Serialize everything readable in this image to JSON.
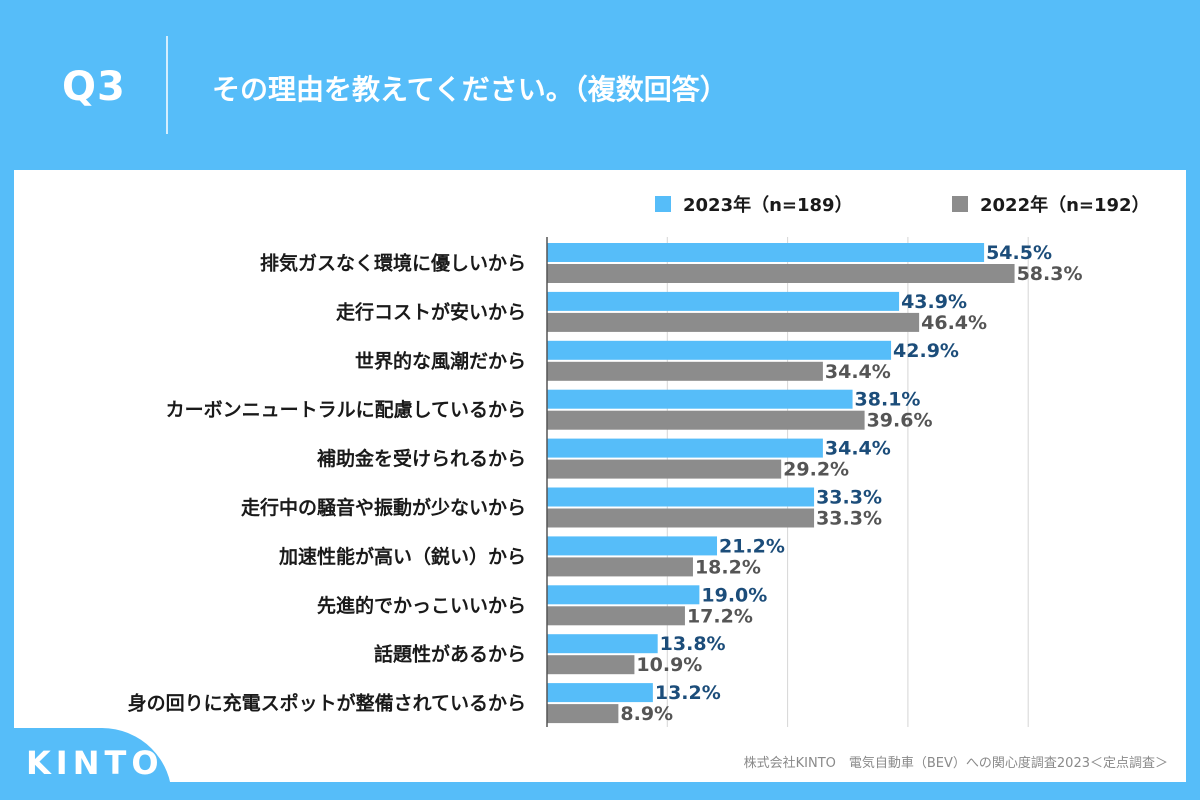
{
  "header": {
    "q_label": "Q3",
    "question": "その理由を教えてください。（複数回答）"
  },
  "legend": {
    "series_2023": "2023年（n=189）",
    "series_2022": "2022年（n=192）"
  },
  "colors": {
    "background": "#56bdf9",
    "series_2023": "#56bdf9",
    "series_2022": "#8c8c8c",
    "label_2023": "#1c4d7a",
    "label_2022": "#555555"
  },
  "footer": {
    "source": "株式会社KINTO　電気自動車（BEV）への関心度調査2023＜定点調査＞",
    "logo": "KINTO"
  },
  "chart_data": {
    "type": "bar",
    "orientation": "horizontal",
    "title": "その理由を教えてください。（複数回答）",
    "xlabel": "",
    "ylabel": "",
    "xlim": [
      0,
      70
    ],
    "grid": true,
    "legend_position": "top-right",
    "categories": [
      "排気ガスなく環境に優しいから",
      "走行コストが安いから",
      "世界的な風潮だから",
      "カーボンニュートラルに配慮しているから",
      "補助金を受けられるから",
      "走行中の騒音や振動が少ないから",
      "加速性能が高い（鋭い）から",
      "先進的でかっこいいから",
      "話題性があるから",
      "身の回りに充電スポットが整備されているから"
    ],
    "series": [
      {
        "name": "2023年（n=189）",
        "values": [
          54.5,
          43.9,
          42.9,
          38.1,
          34.4,
          33.3,
          21.2,
          19.0,
          13.8,
          13.2
        ],
        "labels": [
          "54.5%",
          "43.9%",
          "42.9%",
          "38.1%",
          "34.4%",
          "33.3%",
          "21.2%",
          "19.0%",
          "13.8%",
          "13.2%"
        ]
      },
      {
        "name": "2022年（n=192）",
        "values": [
          58.3,
          46.4,
          34.4,
          39.6,
          29.2,
          33.3,
          18.2,
          17.2,
          10.9,
          8.9
        ],
        "labels": [
          "58.3%",
          "46.4%",
          "34.4%",
          "39.6%",
          "29.2%",
          "33.3%",
          "18.2%",
          "17.2%",
          "10.9%",
          "8.9%"
        ]
      }
    ]
  }
}
